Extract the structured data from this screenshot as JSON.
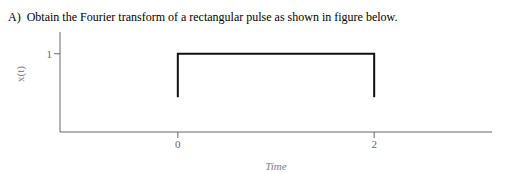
{
  "chart_data": {
    "type": "line",
    "title": "A)  Obtain the Fourier transform of a rectangular pulse as shown in figure below.",
    "xlabel": "Time",
    "ylabel": "x(t)",
    "x": [
      0,
      0,
      2,
      2
    ],
    "values": [
      0,
      1,
      1,
      0
    ],
    "color": "#111111",
    "xlim": [
      -1.2,
      3.2
    ],
    "ylim": [
      -0.8,
      1.5
    ],
    "xticks": [
      0,
      2
    ],
    "yticks": [
      1
    ],
    "grid": false
  }
}
